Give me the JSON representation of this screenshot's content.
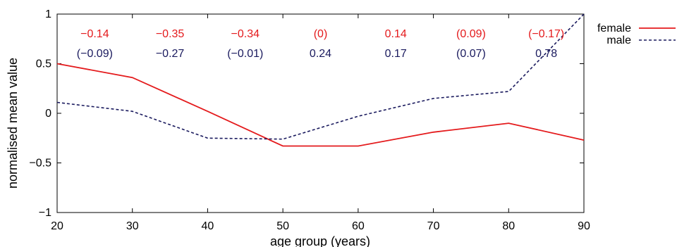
{
  "chart_data": {
    "type": "line",
    "title": "",
    "xlabel": "age group (years)",
    "ylabel": "normalised mean value",
    "xlim": [
      20,
      90
    ],
    "ylim": [
      -1,
      1
    ],
    "x_ticks": [
      20,
      30,
      40,
      50,
      60,
      70,
      80,
      90
    ],
    "y_ticks": [
      -1,
      -0.5,
      0,
      0.5,
      1
    ],
    "y_tick_labels": [
      "−1",
      "−0.5",
      "0",
      "0.5",
      "1"
    ],
    "grid": false,
    "legend_position": "top-right, outside plot",
    "x": [
      20,
      30,
      40,
      50,
      60,
      70,
      80,
      90
    ],
    "series": [
      {
        "name": "female",
        "color": "#e41a1c",
        "dash": "solid",
        "values": [
          0.5,
          0.36,
          0.02,
          -0.33,
          -0.33,
          -0.19,
          -0.1,
          -0.27
        ]
      },
      {
        "name": "male",
        "color": "#1a1a5e",
        "dash": "dashed",
        "values": [
          0.11,
          0.02,
          -0.25,
          -0.26,
          -0.03,
          0.15,
          0.22,
          1.0
        ]
      }
    ],
    "annotations": {
      "female": [
        "−0.14",
        "−0.35",
        "−0.34",
        "(0)",
        "0.14",
        "(0.09)",
        "(−0.17)"
      ],
      "male": [
        "(−0.09)",
        "−0.27",
        "(−0.01)",
        "0.24",
        "0.17",
        "(0.07)",
        "0.78"
      ]
    }
  }
}
